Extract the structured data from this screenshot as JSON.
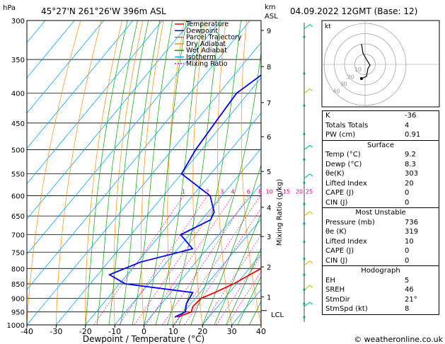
{
  "header": {
    "hpa_label": "hPa",
    "location": "45°27'N  261°26'W  396m  ASL",
    "km_label": "km",
    "asl_label": "ASL",
    "datetime": "04.09.2022  12GMT  (Base: 12)"
  },
  "axes": {
    "xlabel": "Dewpoint  /  Temperature  (°C)",
    "mixing_ratio_label": "Mixing Ratio (g/kg)",
    "lcl_label": "LCL",
    "copyright": "© weatheronline.co.uk"
  },
  "legend": [
    {
      "name": "Temperature",
      "color": "#ff0000",
      "dash": ""
    },
    {
      "name": "Dewpoint",
      "color": "#0000ff",
      "dash": ""
    },
    {
      "name": "Parcel Trajectory",
      "color": "#808080",
      "dash": ""
    },
    {
      "name": "Dry Adiabat",
      "color": "#ff8c00",
      "dash": ""
    },
    {
      "name": "Wet Adiabat",
      "color": "#00aa00",
      "dash": ""
    },
    {
      "name": "Isotherm",
      "color": "#00aaff",
      "dash": ""
    },
    {
      "name": "Mixing Ratio",
      "color": "#ff00aa",
      "dash": "2,2"
    }
  ],
  "chart_data": {
    "type": "line",
    "title": "",
    "xlabel": "Dewpoint / Temperature (°C)",
    "ylabel": "hPa",
    "xlim": [
      -40,
      40
    ],
    "ylim": [
      1000,
      300
    ],
    "x_ticks": [
      "-40",
      "-30",
      "-20",
      "-10",
      "0",
      "10",
      "20",
      "30",
      "40"
    ],
    "y_ticks": [
      "300",
      "350",
      "400",
      "450",
      "500",
      "550",
      "600",
      "650",
      "700",
      "750",
      "800",
      "850",
      "900",
      "950",
      "1000"
    ],
    "km_ticks": [
      {
        "label": "9",
        "p": 312
      },
      {
        "label": "8",
        "p": 360
      },
      {
        "label": "7",
        "p": 415
      },
      {
        "label": "6",
        "p": 475
      },
      {
        "label": "5",
        "p": 545
      },
      {
        "label": "4",
        "p": 628
      },
      {
        "label": "3",
        "p": 705
      },
      {
        "label": "2",
        "p": 795
      },
      {
        "label": "1",
        "p": 895
      }
    ],
    "lcl_p": 945,
    "mixing_ratio_labels": [
      "1",
      "2",
      "3",
      "4",
      "6",
      "8",
      "10",
      "15",
      "20",
      "25"
    ],
    "series": [
      {
        "name": "Temperature",
        "color": "#ff0000",
        "points": [
          [
            9.2,
            970
          ],
          [
            12.5,
            950
          ],
          [
            11.5,
            930
          ],
          [
            12,
            900
          ],
          [
            15,
            880
          ],
          [
            19,
            850
          ],
          [
            24,
            800
          ],
          [
            22,
            750
          ],
          [
            21,
            700
          ],
          [
            19,
            650
          ],
          [
            17,
            600
          ],
          [
            14.5,
            550
          ],
          [
            11,
            500
          ],
          [
            8,
            450
          ],
          [
            4,
            400
          ],
          [
            -1,
            350
          ],
          [
            -6,
            300
          ]
        ]
      },
      {
        "name": "Dewpoint",
        "color": "#0000ff",
        "points": [
          [
            8.3,
            970
          ],
          [
            10.5,
            950
          ],
          [
            8.5,
            920
          ],
          [
            7.5,
            880
          ],
          [
            -18,
            850
          ],
          [
            -26,
            820
          ],
          [
            -19,
            780
          ],
          [
            -5,
            740
          ],
          [
            -13,
            700
          ],
          [
            -7,
            660
          ],
          [
            -8,
            640
          ],
          [
            -14,
            600
          ],
          [
            -30,
            550
          ],
          [
            -32,
            500
          ],
          [
            -33,
            450
          ],
          [
            -34,
            400
          ],
          [
            -28,
            350
          ],
          [
            -20,
            320
          ],
          [
            -25,
            300
          ]
        ]
      }
    ]
  },
  "indices": [
    {
      "label": "K",
      "value": "-36"
    },
    {
      "label": "Totals Totals",
      "value": "4"
    },
    {
      "label": "PW (cm)",
      "value": "0.91"
    }
  ],
  "surface": {
    "title": "Surface",
    "rows": [
      {
        "label": "Temp (°C)",
        "value": "9.2"
      },
      {
        "label": "Dewp (°C)",
        "value": "8.3"
      },
      {
        "label": "θe(K)",
        "value": "303"
      },
      {
        "label": "Lifted Index",
        "value": "20"
      },
      {
        "label": "CAPE (J)",
        "value": "0"
      },
      {
        "label": "CIN (J)",
        "value": "0"
      }
    ]
  },
  "most_unstable": {
    "title": "Most Unstable",
    "rows": [
      {
        "label": "Pressure (mb)",
        "value": "736"
      },
      {
        "label": "θe (K)",
        "value": "319"
      },
      {
        "label": "Lifted Index",
        "value": "10"
      },
      {
        "label": "CAPE (J)",
        "value": "0"
      },
      {
        "label": "CIN (J)",
        "value": "0"
      }
    ]
  },
  "hodograph_table": {
    "title": "Hodograph",
    "rows": [
      {
        "label": "EH",
        "value": "5"
      },
      {
        "label": "SREH",
        "value": "46"
      },
      {
        "label": "StmDir",
        "value": "21°"
      },
      {
        "label": "StmSpd (kt)",
        "value": "8"
      }
    ]
  },
  "hodograph": {
    "unit_label": "kt",
    "ring_labels": [
      "10",
      "20",
      "30",
      "40"
    ]
  }
}
